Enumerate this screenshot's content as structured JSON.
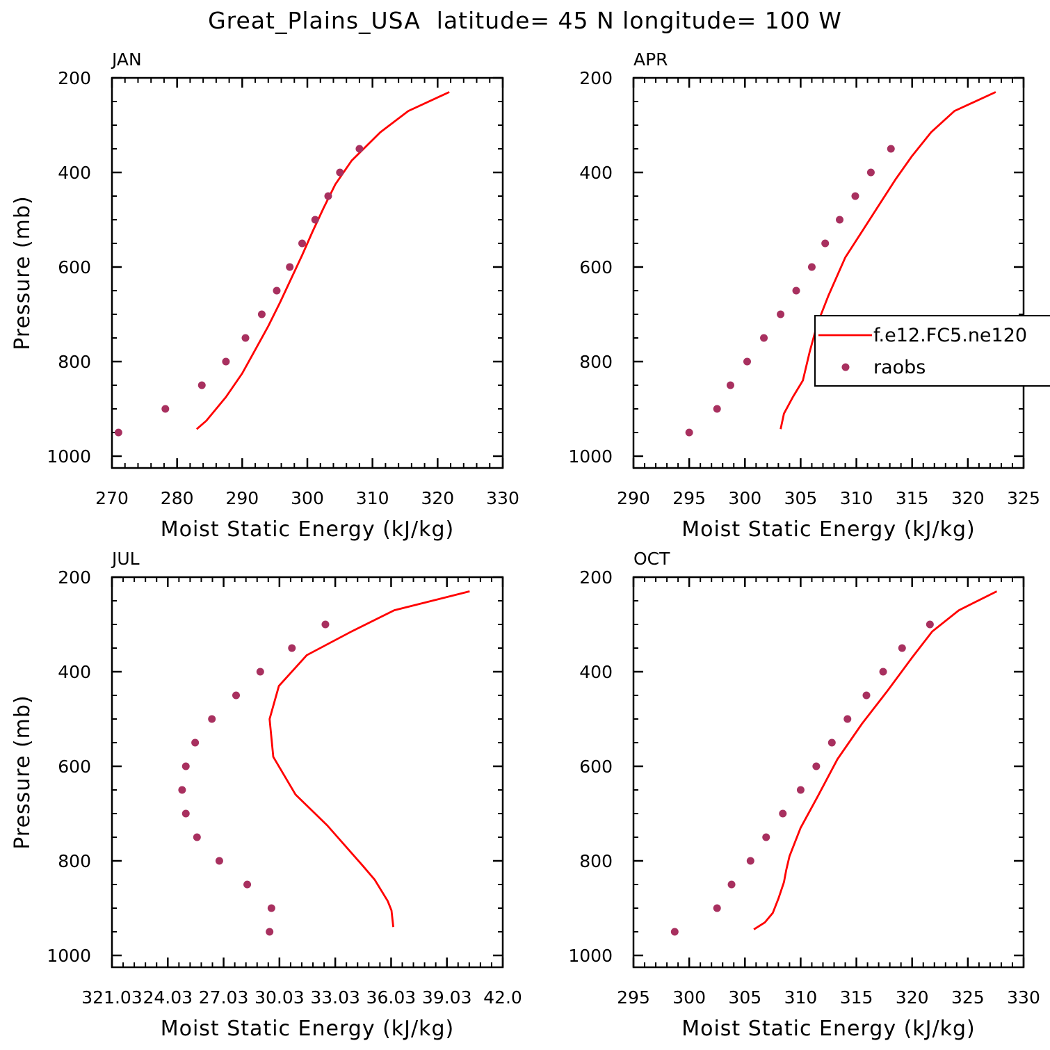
{
  "title": "Great_Plains_USA  latitude= 45 N longitude= 100 W",
  "legend": {
    "placement": "right of APR panel",
    "model_label": "f.e12.FC5.ne120",
    "obs_label": "raobs"
  },
  "colors": {
    "model": "#ff0000",
    "obs": "#a8305f",
    "axes": "#000000"
  },
  "chart_data": [
    {
      "type": "line",
      "title": "JAN",
      "xlabel": "Moist Static Energy (kJ/kg)",
      "ylabel": "Pressure (mb)",
      "xlim": [
        270,
        330
      ],
      "ylim": [
        1025,
        200
      ],
      "xticks": [
        270,
        280,
        290,
        300,
        310,
        320,
        330
      ],
      "xtick_labels": [
        "270",
        "280",
        "290",
        "300",
        "310",
        "320",
        "330"
      ],
      "yticks": [
        200,
        400,
        600,
        800,
        1000
      ],
      "yticks_labels": [
        "200",
        "400",
        "600",
        "800",
        "1000"
      ],
      "model": {
        "p": [
          943,
          925,
          875,
          825,
          775,
          725,
          675,
          625,
          575,
          525,
          475,
          425,
          375,
          315,
          270,
          230
        ],
        "mse": [
          283.0,
          284.5,
          287.5,
          290.0,
          292.0,
          294.0,
          295.8,
          297.5,
          299.2,
          300.8,
          302.5,
          304.3,
          306.8,
          311.2,
          315.5,
          321.8
        ]
      },
      "obs": {
        "p": [
          950,
          900,
          850,
          800,
          750,
          700,
          650,
          600,
          550,
          500,
          450,
          400,
          350
        ],
        "mse": [
          271.0,
          278.2,
          283.8,
          287.5,
          290.5,
          293.0,
          295.3,
          297.3,
          299.2,
          301.2,
          303.2,
          305.0,
          308.0
        ]
      }
    },
    {
      "type": "line",
      "title": "APR",
      "xlabel": "Moist Static Energy (kJ/kg)",
      "ylabel": "",
      "xlim": [
        290,
        325
      ],
      "ylim": [
        1025,
        200
      ],
      "xticks": [
        290,
        295,
        300,
        305,
        310,
        315,
        320,
        325
      ],
      "xtick_labels": [
        "290",
        "295",
        "300",
        "305",
        "310",
        "315",
        "320",
        "325"
      ],
      "yticks": [
        200,
        400,
        600,
        800,
        1000
      ],
      "yticks_labels": [
        "200",
        "400",
        "600",
        "800",
        "1000"
      ],
      "model": {
        "p": [
          943,
          910,
          875,
          840,
          780,
          720,
          660,
          580,
          525,
          470,
          415,
          365,
          315,
          270,
          230
        ],
        "mse": [
          303.2,
          303.5,
          304.3,
          305.2,
          305.8,
          306.5,
          307.5,
          309.0,
          310.5,
          312.0,
          313.5,
          315.0,
          316.7,
          318.8,
          322.5
        ]
      },
      "obs": {
        "p": [
          950,
          900,
          850,
          800,
          750,
          700,
          650,
          600,
          550,
          500,
          450,
          400,
          350
        ],
        "mse": [
          295.0,
          297.5,
          298.7,
          300.2,
          301.7,
          303.2,
          304.6,
          306.0,
          307.2,
          308.5,
          309.9,
          311.3,
          313.1
        ]
      }
    },
    {
      "type": "line",
      "title": "JUL",
      "xlabel": "Moist Static Energy (kJ/kg)",
      "ylabel": "Pressure (mb)",
      "xlim": [
        321.03,
        342.03
      ],
      "ylim": [
        1025,
        200
      ],
      "xticks": [
        321.03,
        324.03,
        327.03,
        330.03,
        333.03,
        336.03,
        339.03,
        342.03
      ],
      "xtick_labels": [
        "321.03",
        "24.03",
        "27.03",
        "30.03",
        "33.03",
        "36.03",
        "39.03",
        "42.0"
      ],
      "yticks": [
        200,
        400,
        600,
        800,
        1000
      ],
      "yticks_labels": [
        "200",
        "400",
        "600",
        "800",
        "1000"
      ],
      "model": {
        "p": [
          940,
          905,
          885,
          840,
          810,
          725,
          660,
          580,
          500,
          430,
          365,
          315,
          270,
          230
        ],
        "mse": [
          336.15,
          336.05,
          335.85,
          335.15,
          334.5,
          332.6,
          330.9,
          329.7,
          329.5,
          330.0,
          331.5,
          333.9,
          336.2,
          340.25
        ]
      },
      "obs": {
        "p": [
          950,
          900,
          850,
          800,
          750,
          700,
          650,
          600,
          550,
          500,
          450,
          400,
          350,
          300
        ],
        "mse": [
          329.5,
          329.6,
          328.3,
          326.8,
          325.6,
          325.0,
          324.8,
          325.0,
          325.5,
          326.4,
          327.7,
          329.0,
          330.7,
          332.5
        ]
      }
    },
    {
      "type": "line",
      "title": "OCT",
      "xlabel": "Moist Static Energy (kJ/kg)",
      "ylabel": "",
      "xlim": [
        295,
        330
      ],
      "ylim": [
        1025,
        200
      ],
      "xticks": [
        295,
        300,
        305,
        310,
        315,
        320,
        325,
        330
      ],
      "xtick_labels": [
        "295",
        "300",
        "305",
        "310",
        "315",
        "320",
        "325",
        "330"
      ],
      "yticks": [
        200,
        400,
        600,
        800,
        1000
      ],
      "yticks_labels": [
        "200",
        "400",
        "600",
        "800",
        "1000"
      ],
      "model": {
        "p": [
          945,
          930,
          910,
          880,
          845,
          820,
          790,
          730,
          665,
          585,
          510,
          440,
          370,
          315,
          270,
          230
        ],
        "mse": [
          305.8,
          306.8,
          307.5,
          308.0,
          308.5,
          308.7,
          309.0,
          310.0,
          311.5,
          313.3,
          315.5,
          317.8,
          320.0,
          321.8,
          324.2,
          327.6
        ]
      },
      "obs": {
        "p": [
          950,
          900,
          850,
          800,
          750,
          700,
          650,
          600,
          550,
          500,
          450,
          400,
          350,
          300
        ],
        "mse": [
          298.7,
          302.5,
          303.8,
          305.5,
          306.9,
          308.4,
          310.0,
          311.4,
          312.8,
          314.2,
          315.9,
          317.4,
          319.1,
          321.6
        ]
      }
    }
  ]
}
